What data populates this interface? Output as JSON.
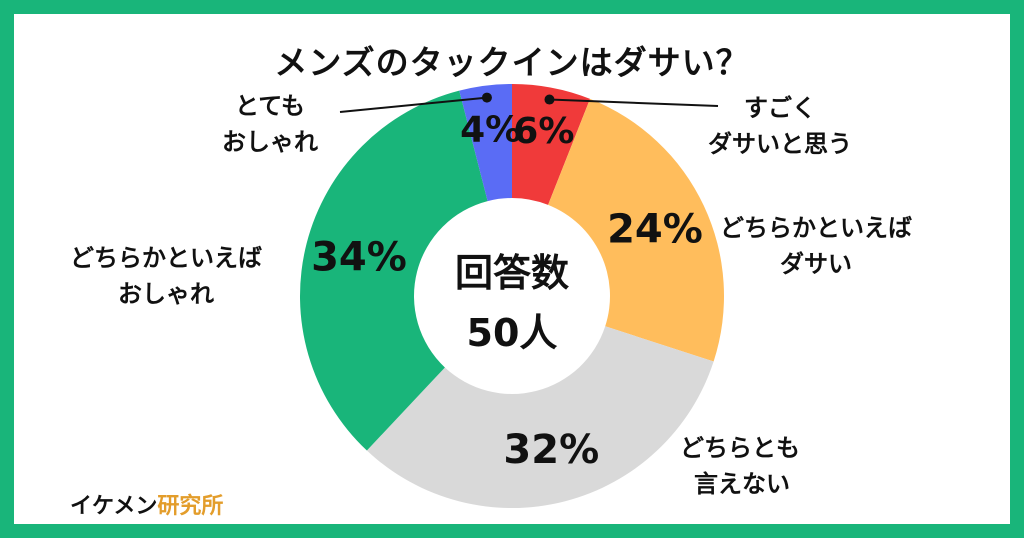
{
  "brand": {
    "name": "イケメン",
    "suffix": "研究所",
    "name_color": "#111111",
    "suffix_color": "#e39d2b"
  },
  "colors": {
    "border": "#19b57a"
  },
  "chart_data": {
    "type": "pie",
    "title": "メンズのタックインはダサい？",
    "center_label": {
      "line1": "回答数",
      "line2": "50人"
    },
    "start_angle_deg": 0,
    "slices": [
      {
        "label_lines": [
          "すごく",
          "ダサいと思う"
        ],
        "value": 6,
        "value_label": "6%",
        "color": "#f03a3a"
      },
      {
        "label_lines": [
          "どちらかといえば",
          "ダサい"
        ],
        "value": 24,
        "value_label": "24%",
        "color": "#ffbd5c"
      },
      {
        "label_lines": [
          "どちらとも",
          "言えない"
        ],
        "value": 32,
        "value_label": "32%",
        "color": "#d9d9d9"
      },
      {
        "label_lines": [
          "どちらかといえば",
          "おしゃれ"
        ],
        "value": 34,
        "value_label": "34%",
        "color": "#19b57a"
      },
      {
        "label_lines": [
          "とても",
          "おしゃれ"
        ],
        "value": 4,
        "value_label": "4%",
        "color": "#5a6cf5"
      }
    ]
  }
}
